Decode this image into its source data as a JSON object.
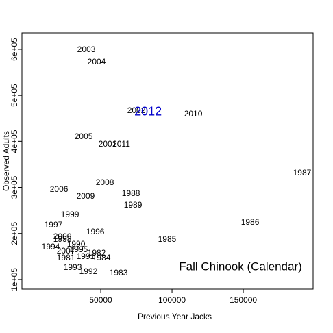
{
  "chart_data": {
    "type": "text-scatter",
    "xlabel": "Previous Year Jacks",
    "ylabel": "Observed Adults",
    "annotation": "Fall Chinook (Calendar)",
    "xlim": [
      -5300,
      199000
    ],
    "ylim": [
      79000,
      635700
    ],
    "xticks": [
      50000,
      100000,
      150000
    ],
    "yticks": [
      {
        "value": 100000,
        "label": "1e+05"
      },
      {
        "value": 200000,
        "label": "2e+05"
      },
      {
        "value": 300000,
        "label": "3e+05"
      },
      {
        "value": 400000,
        "label": "4e+05"
      },
      {
        "value": 500000,
        "label": "5e+05"
      },
      {
        "value": 600000,
        "label": "6e+05"
      }
    ],
    "color": "#000000",
    "points": [
      {
        "label": "2003",
        "x": 39900,
        "y": 598500
      },
      {
        "label": "2004",
        "x": 47100,
        "y": 571700
      },
      {
        "label": "2002",
        "x": 75000,
        "y": 466000
      },
      {
        "label": "2010",
        "x": 114900,
        "y": 458600
      },
      {
        "label": "2005",
        "x": 38000,
        "y": 409500
      },
      {
        "label": "2001",
        "x": 54800,
        "y": 393200
      },
      {
        "label": "2011",
        "x": 64400,
        "y": 393200
      },
      {
        "label": "1987",
        "x": 191300,
        "y": 330700
      },
      {
        "label": "2006",
        "x": 20700,
        "y": 295000
      },
      {
        "label": "2008",
        "x": 52900,
        "y": 309800
      },
      {
        "label": "1988",
        "x": 71200,
        "y": 286000
      },
      {
        "label": "2009",
        "x": 39400,
        "y": 280100
      },
      {
        "label": "1989",
        "x": 72600,
        "y": 260700
      },
      {
        "label": "1999",
        "x": 28400,
        "y": 239900
      },
      {
        "label": "1986",
        "x": 154800,
        "y": 223500
      },
      {
        "label": "1997",
        "x": 16800,
        "y": 217600
      },
      {
        "label": "1996",
        "x": 46200,
        "y": 202700
      },
      {
        "label": "2000",
        "x": 23100,
        "y": 192300
      },
      {
        "label": "1998",
        "x": 23100,
        "y": 186300
      },
      {
        "label": "1985",
        "x": 96600,
        "y": 186300
      },
      {
        "label": "1990",
        "x": 32700,
        "y": 175900
      },
      {
        "label": "1994",
        "x": 14900,
        "y": 169900
      },
      {
        "label": "1995",
        "x": 34600,
        "y": 164000
      },
      {
        "label": "2007",
        "x": 25500,
        "y": 161000
      },
      {
        "label": "1982",
        "x": 47100,
        "y": 156500
      },
      {
        "label": "1981",
        "x": 25500,
        "y": 146100
      },
      {
        "label": "1991",
        "x": 39400,
        "y": 149100
      },
      {
        "label": "1984",
        "x": 50500,
        "y": 146100
      },
      {
        "label": "1993",
        "x": 30300,
        "y": 125300
      },
      {
        "label": "1992",
        "x": 41300,
        "y": 116400
      },
      {
        "label": "1983",
        "x": 62500,
        "y": 113400
      }
    ],
    "highlight": {
      "label": "2012",
      "x": 83200,
      "y": 463100,
      "color": "#0000cc"
    }
  }
}
